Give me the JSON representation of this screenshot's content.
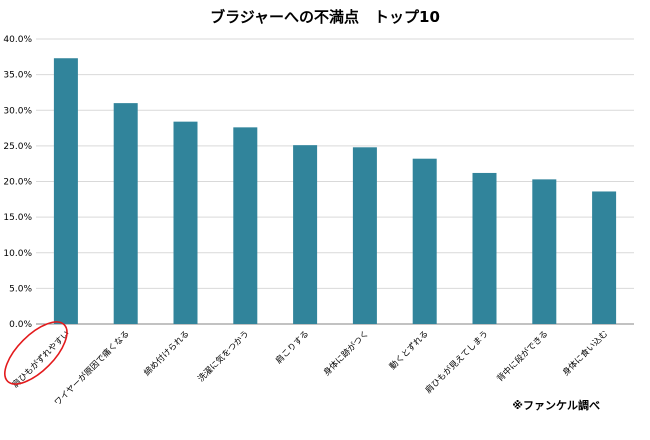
{
  "chart_data": {
    "type": "bar",
    "title": "ブラジャーへの不満点　トップ10",
    "xlabel": "",
    "ylabel": "",
    "categories": [
      "肩ひもがずれやすい",
      "ワイヤーが原因で痛くなる",
      "締め付けられる",
      "洗濯に気をつかう",
      "肩こりする",
      "身体に跡がつく",
      "動くとずれる",
      "肩ひもが見えてしまう",
      "背中に段ができる",
      "身体に食い込む"
    ],
    "values": [
      37.3,
      31.0,
      28.4,
      27.6,
      25.1,
      24.8,
      23.2,
      21.2,
      20.3,
      18.6
    ],
    "ylim": [
      0,
      40
    ],
    "yticks": [
      "0.0%",
      "5.0%",
      "10.0%",
      "15.0%",
      "20.0%",
      "25.0%",
      "30.0%",
      "35.0%",
      "40.0%"
    ],
    "grid": true,
    "bar_color": "#31849b",
    "highlight_color": "#e31a1c",
    "highlighted_category": "肩ひもがずれやすい",
    "source_note": "※ファンケル調べ"
  }
}
